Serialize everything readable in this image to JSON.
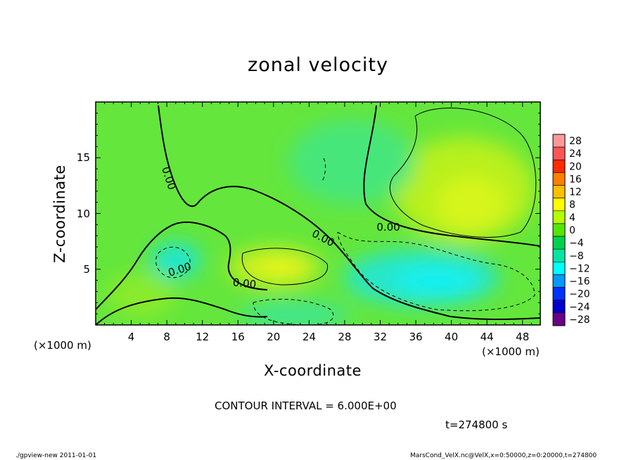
{
  "chart_data": {
    "type": "heatmap",
    "title": "zonal velocity",
    "xlabel": "X-coordinate",
    "ylabel": "Z-coordinate",
    "x_unit_note": "(×1000 m)",
    "xlim": [
      0,
      50
    ],
    "ylim": [
      0,
      20
    ],
    "x_ticks": [
      4,
      8,
      12,
      16,
      20,
      24,
      28,
      32,
      36,
      40,
      44,
      48
    ],
    "y_ticks": [
      5,
      10,
      15
    ],
    "contour_interval_text": "CONTOUR INTERVAL = 6.000E+00",
    "contour_labels": [
      "0.00",
      "0.00",
      "0.00",
      "0.00",
      "0.00"
    ],
    "time_text": "t=274800 s",
    "colorbar": {
      "levels": [
        28,
        24,
        20,
        16,
        12,
        8,
        4,
        0,
        -4,
        -8,
        -12,
        -16,
        -20,
        -24,
        -28
      ],
      "colors": [
        "#ff9999",
        "#ff5555",
        "#ff2a00",
        "#ff7f00",
        "#ffbf00",
        "#ffff00",
        "#b4ff00",
        "#55e600",
        "#00d24b",
        "#00e6a0",
        "#00ffff",
        "#0099ff",
        "#0033ff",
        "#0000cc",
        "#6a0088"
      ]
    },
    "regions": [
      {
        "name": "positive jet core",
        "x": [
          40,
          46
        ],
        "z": [
          9,
          14
        ],
        "value_range": [
          4,
          8
        ]
      },
      {
        "name": "positive lobe",
        "x": [
          18,
          25
        ],
        "z": [
          3,
          6
        ],
        "value_range": [
          4,
          8
        ]
      },
      {
        "name": "negative core",
        "x": [
          33,
          46
        ],
        "z": [
          2,
          6
        ],
        "value_range": [
          -12,
          -4
        ]
      },
      {
        "name": "negative pocket",
        "x": [
          7,
          11
        ],
        "z": [
          4,
          7
        ],
        "value_range": [
          -12,
          -4
        ]
      }
    ]
  },
  "footer": {
    "left": "./gpview-new 2011-01-01",
    "right": "MarsCond_VelX.nc@VelX,x=0:50000,z=0:20000,t=274800"
  }
}
